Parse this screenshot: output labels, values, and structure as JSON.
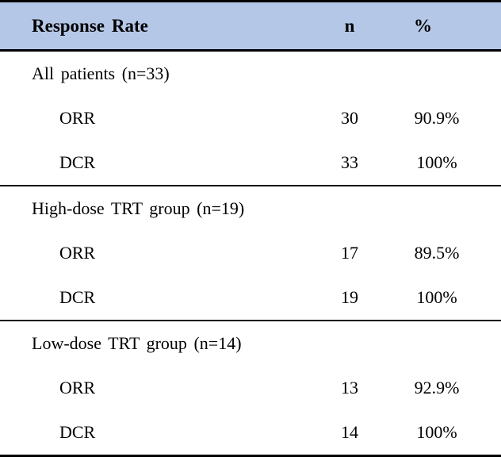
{
  "table": {
    "header": {
      "col1": "Response Rate",
      "col2": "n",
      "col3": "%"
    },
    "sections": [
      {
        "label": "All patients (n=33)",
        "rows": [
          {
            "name": "ORR",
            "n": "30",
            "pct": "90.9%"
          },
          {
            "name": "DCR",
            "n": "33",
            "pct": "100%"
          }
        ]
      },
      {
        "label": "High-dose TRT group (n=19)",
        "rows": [
          {
            "name": "ORR",
            "n": "17",
            "pct": "89.5%"
          },
          {
            "name": "DCR",
            "n": "19",
            "pct": "100%"
          }
        ]
      },
      {
        "label": "Low-dose TRT group (n=14)",
        "rows": [
          {
            "name": "ORR",
            "n": "13",
            "pct": "92.9%"
          },
          {
            "name": "DCR",
            "n": "14",
            "pct": "100%"
          }
        ]
      }
    ],
    "colors": {
      "header_bg": "#b4c7e7",
      "border": "#000000",
      "text": "#000000"
    }
  }
}
